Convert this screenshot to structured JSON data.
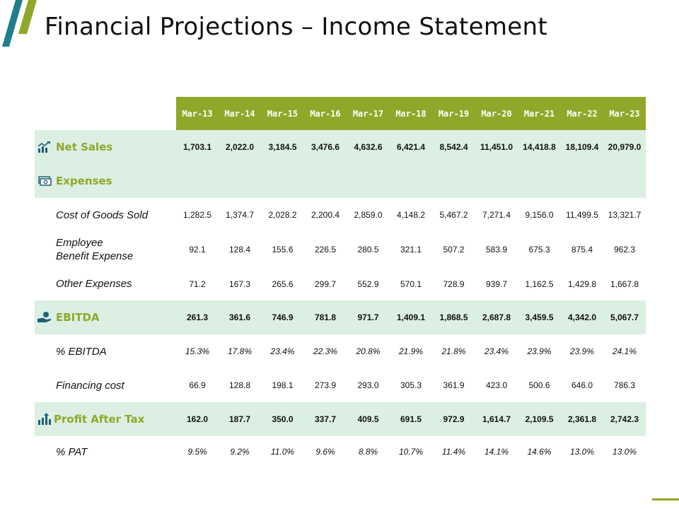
{
  "title": "Financial Projections – Income Statement",
  "colors": {
    "accent": "#8fa829",
    "teal": "#1f7f8c",
    "row_highlight": "#dcefe3"
  },
  "columns": [
    "Mar-13",
    "Mar-14",
    "Mar-15",
    "Mar-16",
    "Mar-17",
    "Mar-18",
    "Mar-19",
    "Mar-20",
    "Mar-21",
    "Mar-22",
    "Mar-23"
  ],
  "rows": [
    {
      "label": "Net Sales",
      "icon": "chart-growth-icon",
      "values": [
        "1,703.1",
        "2,022.0",
        "3,184.5",
        "3,476.6",
        "4,632.6",
        "6,421.4",
        "8,542.4",
        "11,451.0",
        "14,418.8",
        "18,109.4",
        "20,979.0"
      ]
    },
    {
      "label": "Expenses",
      "icon": "money-stack-icon",
      "values": []
    },
    {
      "label": "Cost of Goods Sold",
      "values": [
        "1,282.5",
        "1,374.7",
        "2,028.2",
        "2,200.4",
        "2,859.0",
        "4,148.2",
        "5,467.2",
        "7,271.4",
        "9,156.0",
        "11,499.5",
        "13,321.7"
      ]
    },
    {
      "label": "Employee Benefit Expense",
      "values": [
        "92.1",
        "128.4",
        "155.6",
        "226.5",
        "280.5",
        "321.1",
        "507.2",
        "583.9",
        "675.3",
        "875.4",
        "962.3"
      ]
    },
    {
      "label": "Other Expenses",
      "values": [
        "71.2",
        "167.3",
        "265.6",
        "299.7",
        "552.9",
        "570.1",
        "728.9",
        "939.7",
        "1,162.5",
        "1,429.8",
        "1,667.8"
      ]
    },
    {
      "label": "EBITDA",
      "icon": "hand-coin-icon",
      "values": [
        "261.3",
        "361.6",
        "746.9",
        "781.8",
        "971.7",
        "1,409.1",
        "1,868.5",
        "2,687.8",
        "3,459.5",
        "4,342.0",
        "5,067.7"
      ]
    },
    {
      "label": "% EBITDA",
      "values": [
        "15.3%",
        "17.8%",
        "23.4%",
        "22.3%",
        "20.8%",
        "21.9%",
        "21.8%",
        "23.4%",
        "23.9%",
        "23.9%",
        "24.1%"
      ]
    },
    {
      "label": "Financing cost",
      "values": [
        "66.9",
        "128.8",
        "198.1",
        "273.9",
        "293.0",
        "305.3",
        "361.9",
        "423.0",
        "500.6",
        "646.0",
        "786.3"
      ]
    },
    {
      "label": "Profit After Tax",
      "icon": "bar-arrow-icon",
      "values": [
        "162.0",
        "187.7",
        "350.0",
        "337.7",
        "409.5",
        "691.5",
        "972.9",
        "1,614.7",
        "2,109.5",
        "2,361.8",
        "2,742.3"
      ]
    },
    {
      "label": "% PAT",
      "values": [
        "9.5%",
        "9.2%",
        "11.0%",
        "9.6%",
        "8.8%",
        "10.7%",
        "11.4%",
        "14.1%",
        "14.6%",
        "13.0%",
        "13.0%"
      ]
    }
  ]
}
